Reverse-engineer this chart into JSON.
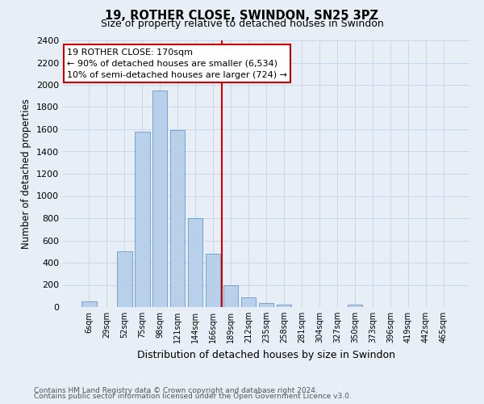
{
  "title": "19, ROTHER CLOSE, SWINDON, SN25 3PZ",
  "subtitle": "Size of property relative to detached houses in Swindon",
  "xlabel": "Distribution of detached houses by size in Swindon",
  "ylabel": "Number of detached properties",
  "footnote1": "Contains HM Land Registry data © Crown copyright and database right 2024.",
  "footnote2": "Contains public sector information licensed under the Open Government Licence v3.0.",
  "categories": [
    "6sqm",
    "29sqm",
    "52sqm",
    "75sqm",
    "98sqm",
    "121sqm",
    "144sqm",
    "166sqm",
    "189sqm",
    "212sqm",
    "235sqm",
    "258sqm",
    "281sqm",
    "304sqm",
    "327sqm",
    "350sqm",
    "373sqm",
    "396sqm",
    "419sqm",
    "442sqm",
    "465sqm"
  ],
  "values": [
    50,
    0,
    500,
    1580,
    1950,
    1590,
    800,
    480,
    200,
    90,
    35,
    20,
    0,
    0,
    0,
    20,
    0,
    0,
    0,
    0,
    0
  ],
  "bar_color": "#b8d0ea",
  "bar_edge_color": "#6699cc",
  "vline_color": "#cc0000",
  "annotation_title": "19 ROTHER CLOSE: 170sqm",
  "annotation_line1": "← 90% of detached houses are smaller (6,534)",
  "annotation_line2": "10% of semi-detached houses are larger (724) →",
  "annotation_box_color": "#cc0000",
  "ylim": [
    0,
    2400
  ],
  "yticks": [
    0,
    200,
    400,
    600,
    800,
    1000,
    1200,
    1400,
    1600,
    1800,
    2000,
    2200,
    2400
  ],
  "grid_color": "#c8d8ea",
  "background_color": "#e8eef5"
}
